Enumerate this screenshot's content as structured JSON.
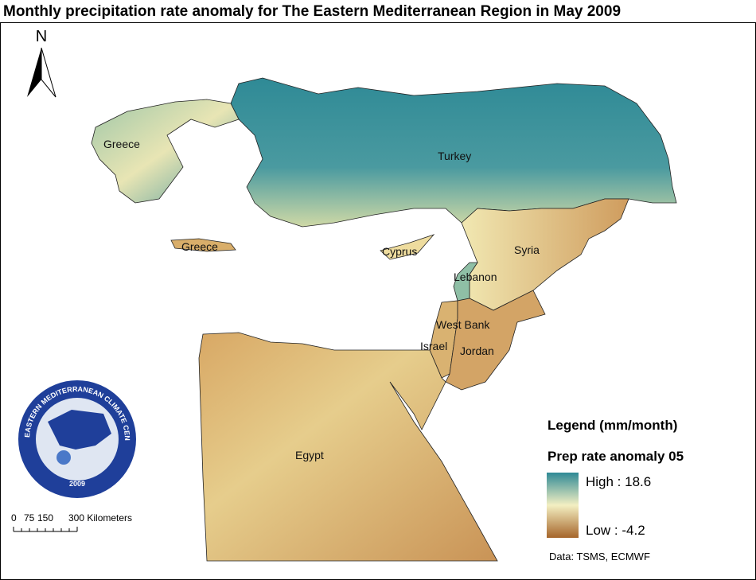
{
  "title": "Monthly precipitation rate anomaly for The Eastern Mediterranean Region in May 2009",
  "north_arrow": "N",
  "labels": {
    "greece": "Greece",
    "turkey": "Turkey",
    "crete": "Greece",
    "cyprus": "Cyprus",
    "syria": "Syria",
    "lebanon": "Lebanon",
    "west_bank": "West Bank",
    "israel": "Israel",
    "jordan": "Jordan",
    "egypt": "Egypt"
  },
  "legend": {
    "heading": "Legend (mm/month)",
    "layer": "Prep rate anomaly 05",
    "high": "High : 18.6",
    "low": "Low : -4.2"
  },
  "scale_bar": {
    "labels": [
      "0",
      "75",
      "150",
      "300 Kilometers"
    ]
  },
  "source": "Data:  TSMS, ECMWF",
  "logo": {
    "name": "EASTERN MEDITERRANEAN CLIMATE CENTRE",
    "year": "2009"
  }
}
